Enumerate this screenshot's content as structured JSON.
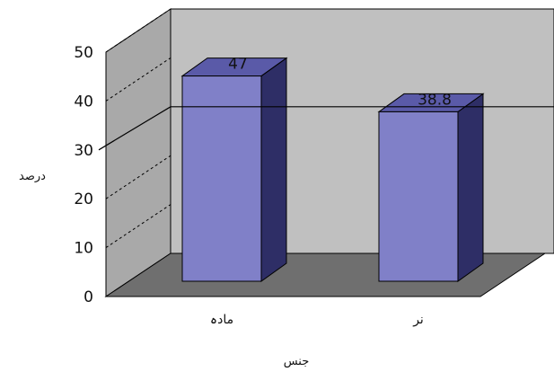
{
  "chart_data": {
    "type": "bar",
    "categories": [
      "مادہ",
      "نر"
    ],
    "values": [
      47,
      38.8
    ],
    "value_labels": [
      "47",
      "38.8"
    ],
    "ylabel": "درصد",
    "xlabel": "جنس",
    "yticks": [
      "0",
      "10",
      "20",
      "30",
      "40",
      "50"
    ],
    "ylim": [
      0,
      50
    ],
    "grid": false,
    "three_d": true,
    "colors": {
      "bar_front": "#8080c8",
      "bar_side": "#2e2e66",
      "bar_top": "#5a5aa8",
      "back_wall": "#c0c0c0",
      "side_wall": "#a9a9a9",
      "floor": "#6f6f6f",
      "line": "#000000"
    }
  }
}
